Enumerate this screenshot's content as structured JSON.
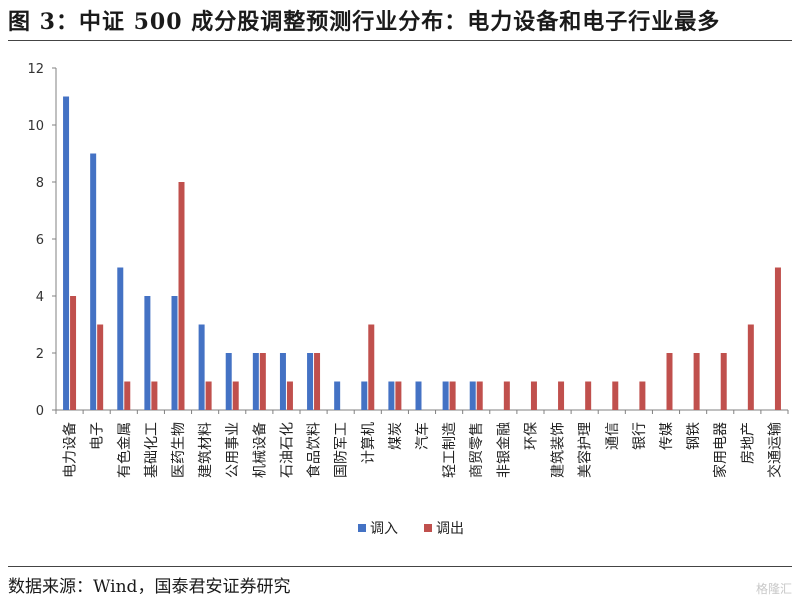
{
  "title": "图 3：中证 500 成分股调整预测行业分布：电力设备和电子行业最多",
  "source": "数据来源：Wind，国泰君安证券研究",
  "watermark": "格隆汇",
  "colors": {
    "in": "#4472C4",
    "out": "#C0504D",
    "axis": "#808080"
  },
  "chart_data": {
    "type": "bar",
    "title": "中证 500 成分股调整预测行业分布：电力设备和电子行业最多",
    "xlabel": "",
    "ylabel": "",
    "ylim": [
      0,
      12
    ],
    "yticks": [
      0,
      2,
      4,
      6,
      8,
      10,
      12
    ],
    "legend_position": "bottom-center",
    "grid": false,
    "categories": [
      "电力设备",
      "电子",
      "有色金属",
      "基础化工",
      "医药生物",
      "建筑材料",
      "公用事业",
      "机械设备",
      "石油石化",
      "食品饮料",
      "国防军工",
      "计算机",
      "煤炭",
      "汽车",
      "轻工制造",
      "商贸零售",
      "非银金融",
      "环保",
      "建筑装饰",
      "美容护理",
      "通信",
      "银行",
      "传媒",
      "钢铁",
      "家用电器",
      "房地产",
      "交通运输"
    ],
    "series": [
      {
        "name": "调入",
        "values": [
          11,
          9,
          5,
          4,
          4,
          3,
          2,
          2,
          2,
          2,
          1,
          1,
          1,
          1,
          1,
          1,
          0,
          0,
          0,
          0,
          0,
          0,
          0,
          0,
          0,
          0,
          0
        ]
      },
      {
        "name": "调出",
        "values": [
          4,
          3,
          1,
          1,
          8,
          1,
          1,
          2,
          1,
          2,
          0,
          3,
          1,
          0,
          1,
          1,
          1,
          1,
          1,
          1,
          1,
          1,
          2,
          2,
          2,
          3,
          5
        ]
      }
    ]
  }
}
